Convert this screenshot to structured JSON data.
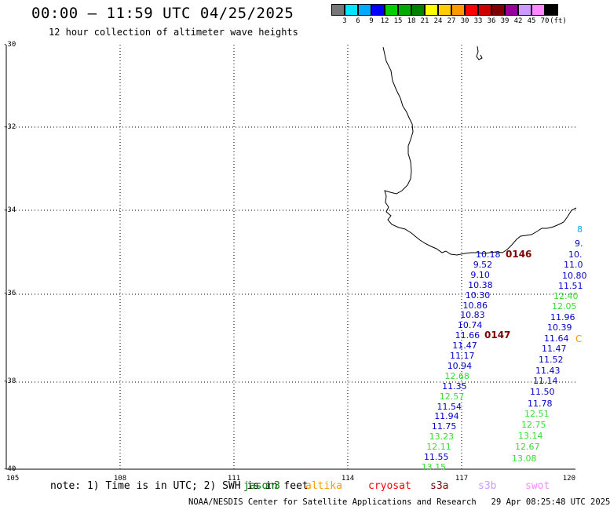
{
  "header": {
    "title": "00:00 – 11:59 UTC 04/25/2025",
    "subtitle": "12 hour collection of altimeter wave heights"
  },
  "scale": {
    "colors": [
      "#777777",
      "#00e5ff",
      "#00aaff",
      "#0000ff",
      "#00d000",
      "#00aa00",
      "#008000",
      "#ffff00",
      "#ffcc00",
      "#ff9900",
      "#ff0000",
      "#cc0000",
      "#800000",
      "#990099",
      "#cc99ff",
      "#ff88ff",
      "#000000"
    ],
    "labels": [
      "3",
      "6",
      "9",
      "12",
      "15",
      "18",
      "21",
      "24",
      "27",
      "30",
      "33",
      "36",
      "39",
      "42",
      "45",
      "70",
      "(ft)"
    ]
  },
  "lat_labels": [
    "-30",
    "-32",
    "-34",
    "-36",
    "-38",
    "-40"
  ],
  "lon_labels": [
    "105",
    "108",
    "111",
    "114",
    "117",
    "120"
  ],
  "footer": {
    "note": "note: 1) Time is in UTC; 2) SWH is in feet",
    "credit": "NOAA/NESDIS Center for Satellite Applications and Research",
    "timestamp": "29 Apr 08:25:48 UTC 2025",
    "satellites": [
      {
        "name": "jason3",
        "color": "#008000"
      },
      {
        "name": "altika",
        "color": "#ff9900"
      },
      {
        "name": "cryosat",
        "color": "#ff0000"
      },
      {
        "name": "s3a",
        "color": "#800000"
      },
      {
        "name": "s3b",
        "color": "#cc99ff"
      },
      {
        "name": "swot",
        "color": "#ff88ff"
      }
    ]
  },
  "cycle_labels": [
    "0146",
    "0147"
  ],
  "track_a": [
    {
      "v": "10.18",
      "c": "#0000cc"
    },
    {
      "v": "9.52",
      "c": "#0000cc"
    },
    {
      "v": "9.10",
      "c": "#0000cc"
    },
    {
      "v": "10.38",
      "c": "#0000cc"
    },
    {
      "v": "10.30",
      "c": "#0000cc"
    },
    {
      "v": "10.86",
      "c": "#0000cc"
    },
    {
      "v": "10.83",
      "c": "#0000cc"
    },
    {
      "v": "10.74",
      "c": "#0000cc"
    },
    {
      "v": "11.66",
      "c": "#0000cc"
    },
    {
      "v": "11.47",
      "c": "#0000cc"
    },
    {
      "v": "11.17",
      "c": "#0000cc"
    },
    {
      "v": "10.94",
      "c": "#0000cc"
    },
    {
      "v": "12.68",
      "c": "#33dd33"
    },
    {
      "v": "11.35",
      "c": "#0000cc"
    },
    {
      "v": "12.57",
      "c": "#33dd33"
    },
    {
      "v": "11.54",
      "c": "#0000cc"
    },
    {
      "v": "11.94",
      "c": "#0000cc"
    },
    {
      "v": "11.75",
      "c": "#0000cc"
    },
    {
      "v": "13.23",
      "c": "#33dd33"
    },
    {
      "v": "12.11",
      "c": "#33dd33"
    },
    {
      "v": "11.55",
      "c": "#0000cc"
    },
    {
      "v": "13.15",
      "c": "#33dd33"
    }
  ],
  "track_b": [
    {
      "v": "8",
      "c": "#00aaff"
    },
    {
      "v": "9.",
      "c": "#0000cc"
    },
    {
      "v": "10.",
      "c": "#0000cc"
    },
    {
      "v": "11.0",
      "c": "#0000cc"
    },
    {
      "v": "10.80",
      "c": "#0000cc"
    },
    {
      "v": "11.51",
      "c": "#0000cc"
    },
    {
      "v": "12.40",
      "c": "#33dd33"
    },
    {
      "v": "12.05",
      "c": "#33dd33"
    },
    {
      "v": "11.96",
      "c": "#0000cc"
    },
    {
      "v": "10.39",
      "c": "#0000cc"
    },
    {
      "v": "11.64",
      "c": "#0000cc"
    },
    {
      "v": "11.47",
      "c": "#0000cc"
    },
    {
      "v": "11.52",
      "c": "#0000cc"
    },
    {
      "v": "11.43",
      "c": "#0000cc"
    },
    {
      "v": "11.14",
      "c": "#0000cc"
    },
    {
      "v": "11.50",
      "c": "#0000cc"
    },
    {
      "v": "11.78",
      "c": "#0000cc"
    },
    {
      "v": "12.51",
      "c": "#33dd33"
    },
    {
      "v": "12.75",
      "c": "#33dd33"
    },
    {
      "v": "13.14",
      "c": "#33dd33"
    },
    {
      "v": "12.67",
      "c": "#33dd33"
    },
    {
      "v": "13.08",
      "c": "#33dd33"
    }
  ]
}
